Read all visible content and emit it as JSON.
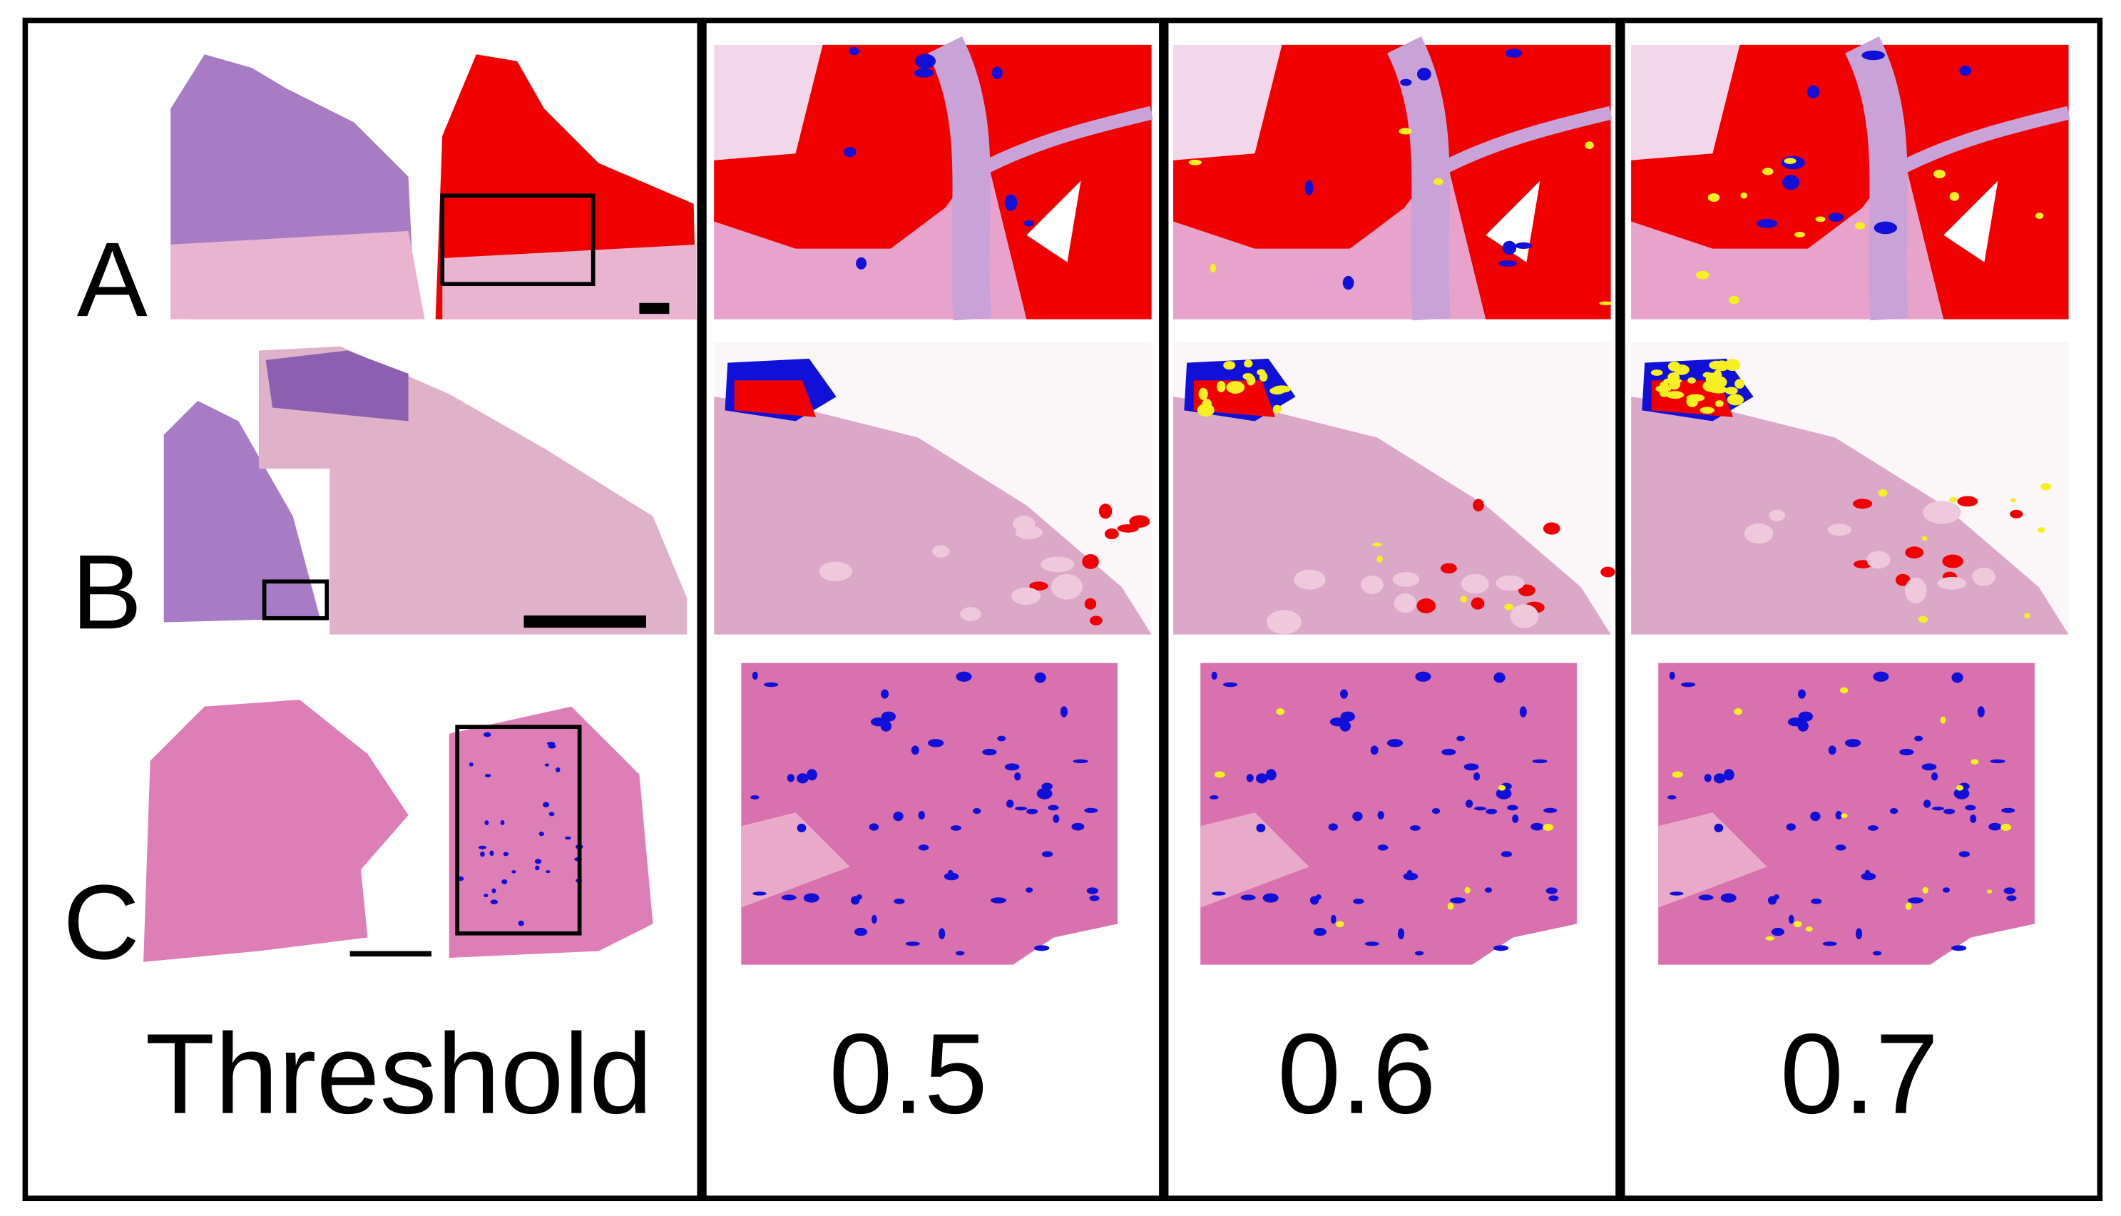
{
  "rows": {
    "labels": [
      "A",
      "B",
      "C"
    ]
  },
  "columns": {
    "labels": [
      "Threshold",
      "0.5",
      "0.6",
      "0.7"
    ]
  }
}
